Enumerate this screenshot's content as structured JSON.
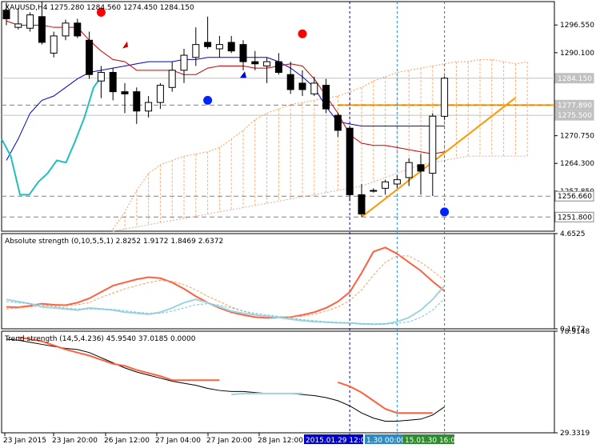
{
  "main_panel": {
    "header": "XAUUSD,H4  1275.280 1284.560 1274.450 1284.150",
    "price_ticks": [
      "1296.550",
      "1290.100",
      "1277.890",
      "1270.750",
      "1264.300",
      "1257.850",
      "1251.800"
    ],
    "price_labels": [
      {
        "text": "1284.150",
        "price": 1284.15,
        "bg": "#c0c0c0",
        "fg": "#ffffff"
      },
      {
        "text": "1277.890",
        "price": 1277.89,
        "bg": "#c0c0c0",
        "fg": "#ffffff"
      },
      {
        "text": "1275.500",
        "price": 1275.5,
        "bg": "#c0c0c0",
        "fg": "#ffffff"
      },
      {
        "text": "1256.660",
        "price": 1256.66,
        "bg": "#ffffff",
        "fg": "#000000"
      },
      {
        "text": "1251.800",
        "price": 1251.8,
        "bg": "#ffffff",
        "fg": "#000000"
      }
    ]
  },
  "absolute_panel": {
    "header": "Absolute strength (0,10,5,5,1) 2.8252 1.9172 1.8469 2.6372",
    "ticks": [
      "4.6525",
      "0.1672"
    ]
  },
  "trend_panel": {
    "header": "Trend strength (14,5,4.236) 45.9540 37.0185 0.0000",
    "ticks": [
      "78.9148",
      "29.3319"
    ]
  },
  "time_axis": {
    "labels": [
      "23 Jan 2015",
      "23 Jan 20:00",
      "26 Jan 12:00",
      "27 Jan 04:00",
      "27 Jan 20:00",
      "28 Jan 12:00"
    ],
    "highlights": [
      {
        "text": "2015.01.29 12:00",
        "bg": "#0000cc",
        "fg": "#ffffff"
      },
      {
        "text": "1.30 00:00",
        "bg": "#2e8bc0",
        "fg": "#ffffff"
      },
      {
        "text": "15.01.30 16:00",
        "bg": "#2e8b2e",
        "fg": "#ffffff"
      }
    ]
  },
  "colors": {
    "kumo": "#ff9f5f",
    "kijun": "#0000cc",
    "tenkan": "#cc0000",
    "chikou": "#20c0c0",
    "trendline": "#ff9900",
    "bull_signal": "#0022ff",
    "bear_signal": "#ff0000",
    "strength_main": "#ff6040",
    "strength_signal": "#9fd3e0"
  },
  "chart_data": [
    {
      "type": "candlestick",
      "symbol": "XAUUSD",
      "timeframe": "H4",
      "ylim": [
        1248.5,
        1302.0
      ],
      "candles": [
        {
          "o": 1300.0,
          "h": 1301.8,
          "l": 1296.5,
          "c": 1298.0
        },
        {
          "o": 1296.0,
          "h": 1300.5,
          "l": 1295.5,
          "c": 1296.8
        },
        {
          "o": 1295.8,
          "h": 1299.5,
          "l": 1295.0,
          "c": 1298.9
        },
        {
          "o": 1298.5,
          "h": 1302.0,
          "l": 1292.0,
          "c": 1292.5
        },
        {
          "o": 1290.0,
          "h": 1295.0,
          "l": 1289.0,
          "c": 1294.0
        },
        {
          "o": 1294.0,
          "h": 1297.8,
          "l": 1293.0,
          "c": 1297.0
        },
        {
          "o": 1297.0,
          "h": 1298.0,
          "l": 1293.5,
          "c": 1294.0
        },
        {
          "o": 1293.0,
          "h": 1295.0,
          "l": 1284.0,
          "c": 1285.0
        },
        {
          "o": 1283.5,
          "h": 1287.0,
          "l": 1279.5,
          "c": 1285.5
        },
        {
          "o": 1285.5,
          "h": 1286.5,
          "l": 1279.0,
          "c": 1281.0
        },
        {
          "o": 1281.0,
          "h": 1283.0,
          "l": 1276.0,
          "c": 1280.5
        },
        {
          "o": 1281.0,
          "h": 1282.0,
          "l": 1273.5,
          "c": 1276.5
        },
        {
          "o": 1276.5,
          "h": 1280.0,
          "l": 1275.0,
          "c": 1278.5
        },
        {
          "o": 1278.5,
          "h": 1283.0,
          "l": 1277.0,
          "c": 1282.5
        },
        {
          "o": 1282.0,
          "h": 1288.0,
          "l": 1281.0,
          "c": 1286.0
        },
        {
          "o": 1286.0,
          "h": 1291.0,
          "l": 1283.0,
          "c": 1289.5
        },
        {
          "o": 1289.0,
          "h": 1296.0,
          "l": 1287.0,
          "c": 1292.0
        },
        {
          "o": 1292.5,
          "h": 1298.5,
          "l": 1291.0,
          "c": 1291.5
        },
        {
          "o": 1291.0,
          "h": 1294.0,
          "l": 1289.0,
          "c": 1292.0
        },
        {
          "o": 1292.5,
          "h": 1294.0,
          "l": 1290.0,
          "c": 1290.5
        },
        {
          "o": 1292.0,
          "h": 1293.0,
          "l": 1286.0,
          "c": 1288.0
        },
        {
          "o": 1288.0,
          "h": 1290.5,
          "l": 1286.0,
          "c": 1287.5
        },
        {
          "o": 1287.0,
          "h": 1289.0,
          "l": 1283.0,
          "c": 1288.0
        },
        {
          "o": 1288.0,
          "h": 1290.0,
          "l": 1285.0,
          "c": 1285.5
        },
        {
          "o": 1285.0,
          "h": 1288.0,
          "l": 1280.5,
          "c": 1281.5
        },
        {
          "o": 1283.0,
          "h": 1286.0,
          "l": 1280.0,
          "c": 1281.5
        },
        {
          "o": 1280.5,
          "h": 1284.5,
          "l": 1280.0,
          "c": 1283.0
        },
        {
          "o": 1282.5,
          "h": 1284.0,
          "l": 1276.0,
          "c": 1277.0
        },
        {
          "o": 1275.5,
          "h": 1276.0,
          "l": 1270.5,
          "c": 1272.0
        },
        {
          "o": 1272.5,
          "h": 1273.0,
          "l": 1255.5,
          "c": 1257.0
        },
        {
          "o": 1257.0,
          "h": 1259.5,
          "l": 1251.8,
          "c": 1252.5
        },
        {
          "o": 1258.0,
          "h": 1258.5,
          "l": 1257.5,
          "c": 1258.0
        },
        {
          "o": 1258.5,
          "h": 1260.5,
          "l": 1257.0,
          "c": 1260.0
        },
        {
          "o": 1259.5,
          "h": 1261.5,
          "l": 1258.5,
          "c": 1260.5
        },
        {
          "o": 1261.0,
          "h": 1265.5,
          "l": 1259.0,
          "c": 1264.5
        },
        {
          "o": 1264.0,
          "h": 1266.5,
          "l": 1257.0,
          "c": 1262.5
        },
        {
          "o": 1262.0,
          "h": 1276.0,
          "l": 1256.7,
          "c": 1275.3
        },
        {
          "o": 1275.28,
          "h": 1284.56,
          "l": 1274.45,
          "c": 1284.15
        }
      ],
      "tenkan": [
        1297.5,
        1296.5,
        1296.5,
        1296.5,
        1296.0,
        1296.0,
        1296.0,
        1293.0,
        1290.5,
        1288.5,
        1288.0,
        1286.0,
        1286.0,
        1286.0,
        1286.0,
        1285.0,
        1285.0,
        1286.5,
        1287.0,
        1287.0,
        1287.0,
        1286.5,
        1286.5,
        1287.0,
        1287.5,
        1287.0,
        1284.0,
        1280.0,
        1276.0,
        1271.0,
        1269.0,
        1268.5,
        1268.5,
        1268.0,
        1267.5,
        1267.0,
        1266.5,
        1267.0
      ],
      "kijun": [
        1265.0,
        1270.0,
        1276.0,
        1279.0,
        1280.0,
        1282.0,
        1284.0,
        1285.5,
        1286.0,
        1286.5,
        1287.0,
        1287.5,
        1288.0,
        1288.0,
        1288.0,
        1288.5,
        1288.5,
        1289.0,
        1289.0,
        1289.0,
        1289.0,
        1289.0,
        1289.0,
        1288.0,
        1286.5,
        1284.5,
        1282.0,
        1277.5,
        1274.0,
        1273.5,
        1273.0,
        1273.0,
        1273.0,
        1273.0,
        1273.0,
        1273.0,
        1273.0,
        1273.0
      ],
      "chikou": [
        1270.0,
        1266.0,
        1257.0,
        1257.0,
        1260.0,
        1262.0,
        1265.0,
        1264.5,
        1269.5,
        1275.0,
        1282.0,
        1285.0
      ],
      "kumo_upper": [
        1249.0,
        1253.0,
        1258.0,
        1262.0,
        1264.0,
        1265.0,
        1266.0,
        1266.5,
        1267.0,
        1268.0,
        1270.0,
        1272.0,
        1274.5,
        1276.0,
        1277.0,
        1278.0,
        1278.5,
        1279.0,
        1279.5,
        1280.0,
        1281.0,
        1282.0,
        1283.5,
        1284.5,
        1285.5,
        1286.0,
        1286.5,
        1287.0,
        1287.5,
        1288.0,
        1288.0,
        1288.5,
        1288.5,
        1288.0,
        1287.5,
        1288.0
      ],
      "kumo_lower": [
        1248.5,
        1249.0,
        1249.5,
        1250.0,
        1250.5,
        1251.0,
        1251.5,
        1252.0,
        1252.5,
        1253.0,
        1253.5,
        1254.0,
        1254.5,
        1255.0,
        1255.5,
        1256.0,
        1256.5,
        1257.0,
        1257.5,
        1258.0,
        1258.5,
        1259.0,
        1260.0,
        1261.0,
        1262.0,
        1263.0,
        1264.0,
        1264.5,
        1265.0,
        1265.5,
        1266.0,
        1266.0,
        1266.0,
        1266.0,
        1266.0,
        1266.0
      ],
      "horizontal_levels": [
        {
          "price": 1284.15,
          "style": "solid",
          "color": "#c0c0c0"
        },
        {
          "price": 1277.89,
          "style": "solid",
          "color": "#ff9900"
        },
        {
          "price": 1277.89,
          "style": "dashed",
          "color": "#808080"
        },
        {
          "price": 1275.5,
          "style": "solid",
          "color": "#c0c0c0"
        },
        {
          "price": 1256.66,
          "style": "dashed",
          "color": "#808080"
        },
        {
          "price": 1251.8,
          "style": "dashed",
          "color": "#808080"
        }
      ],
      "trendline": {
        "from_bar": 30,
        "from_price": 1251.8,
        "to_bar": 43,
        "to_price": 1279.6
      },
      "signals": [
        {
          "bar": 8,
          "price": 1299.5,
          "kind": "sell_dot"
        },
        {
          "bar": 25,
          "price": 1294.5,
          "kind": "sell_dot"
        },
        {
          "bar": 17,
          "price": 1279.0,
          "kind": "buy_dot"
        },
        {
          "bar": 37,
          "price": 1253.0,
          "kind": "buy_dot"
        },
        {
          "bar": 10,
          "price": 1292.0,
          "kind": "arrow_up_red"
        },
        {
          "bar": 20,
          "price": 1285.0,
          "kind": "arrow_up_blue"
        }
      ],
      "vertical_lines": [
        {
          "bar": 29,
          "color": "#0000cc"
        },
        {
          "bar": 33,
          "color": "#2e8bc0"
        },
        {
          "bar": 37,
          "color": "#2e8b2e"
        }
      ]
    },
    {
      "type": "line",
      "title": "Absolute strength (0,10,5,5,1)",
      "ylim": [
        0.1672,
        4.6525
      ],
      "series": [
        {
          "values": [
            1.2,
            1.18,
            1.25,
            1.35,
            1.3,
            1.28,
            1.4,
            1.6,
            1.9,
            2.2,
            2.35,
            2.5,
            2.6,
            2.55,
            2.35,
            2.05,
            1.7,
            1.4,
            1.15,
            0.95,
            0.82,
            0.72,
            0.68,
            0.7,
            0.72,
            0.82,
            0.95,
            1.15,
            1.45,
            1.9,
            2.8,
            3.8,
            4.0,
            3.7,
            3.3,
            2.9,
            2.4,
            1.95
          ]
        },
        {
          "values": [
            1.1,
            1.15,
            1.2,
            1.25,
            1.25,
            1.25,
            1.3,
            1.4,
            1.65,
            1.85,
            2.05,
            2.2,
            2.35,
            2.45,
            2.4,
            2.25,
            2.0,
            1.7,
            1.45,
            1.2,
            1.0,
            0.85,
            0.75,
            0.72,
            0.72,
            0.76,
            0.85,
            1.0,
            1.2,
            1.5,
            2.0,
            2.7,
            3.3,
            3.6,
            3.6,
            3.3,
            2.9,
            2.45
          ]
        },
        {
          "values": [
            1.55,
            1.45,
            1.35,
            1.2,
            1.15,
            1.1,
            1.05,
            1.15,
            1.1,
            1.05,
            0.95,
            0.9,
            0.85,
            0.95,
            1.15,
            1.4,
            1.55,
            1.4,
            1.2,
            1.0,
            0.9,
            0.82,
            0.76,
            0.7,
            0.62,
            0.55,
            0.5,
            0.48,
            0.45,
            0.44,
            0.4,
            0.38,
            0.4,
            0.5,
            0.7,
            1.05,
            1.55,
            2.2
          ]
        },
        {
          "values": [
            1.45,
            1.4,
            1.35,
            1.3,
            1.22,
            1.15,
            1.1,
            1.1,
            1.1,
            1.08,
            1.02,
            0.95,
            0.9,
            0.9,
            1.0,
            1.15,
            1.3,
            1.35,
            1.28,
            1.15,
            1.0,
            0.9,
            0.82,
            0.75,
            0.68,
            0.6,
            0.55,
            0.5,
            0.47,
            0.45,
            0.42,
            0.4,
            0.4,
            0.42,
            0.5,
            0.7,
            1.05,
            1.6
          ]
        }
      ]
    },
    {
      "type": "line",
      "title": "Trend strength (14,5,4.236)",
      "ylim": [
        29.3319,
        78.9148
      ],
      "series": [
        {
          "values": [
            75.0,
            74.5,
            73.5,
            72.5,
            71.5,
            70.5,
            70.0,
            68.5,
            66.0,
            63.5,
            61.0,
            59.0,
            57.5,
            56.0,
            54.5,
            53.5,
            52.5,
            51.0,
            50.0,
            49.5,
            49.5,
            49.0,
            48.5,
            48.5,
            48.5,
            48.0,
            47.5,
            46.5,
            45.0,
            42.5,
            39.0,
            36.5,
            35.0,
            35.0,
            35.5,
            36.0,
            38.0,
            42.0
          ]
        },
        {
          "values": [
            null,
            76.0,
            75.0,
            74.0,
            72.0,
            70.0,
            68.5,
            67.0,
            65.0,
            63.0,
            62.0,
            60.0,
            58.5,
            57.0,
            55.0,
            55.0,
            55.0,
            55.0,
            55.0,
            null,
            null,
            null,
            null,
            null,
            null,
            null,
            null,
            null,
            54.0,
            52.0,
            49.0,
            45.0,
            41.0,
            39.0,
            39.0,
            39.0,
            39.0,
            null
          ]
        },
        {
          "values": [
            null,
            null,
            null,
            null,
            null,
            null,
            null,
            null,
            null,
            null,
            null,
            null,
            null,
            null,
            null,
            null,
            null,
            null,
            null,
            48.0,
            48.5,
            48.5,
            48.5,
            48.5,
            48.5,
            48.5,
            null,
            null,
            null,
            null,
            null,
            null,
            null,
            null,
            null,
            null,
            null,
            null
          ]
        }
      ]
    }
  ]
}
